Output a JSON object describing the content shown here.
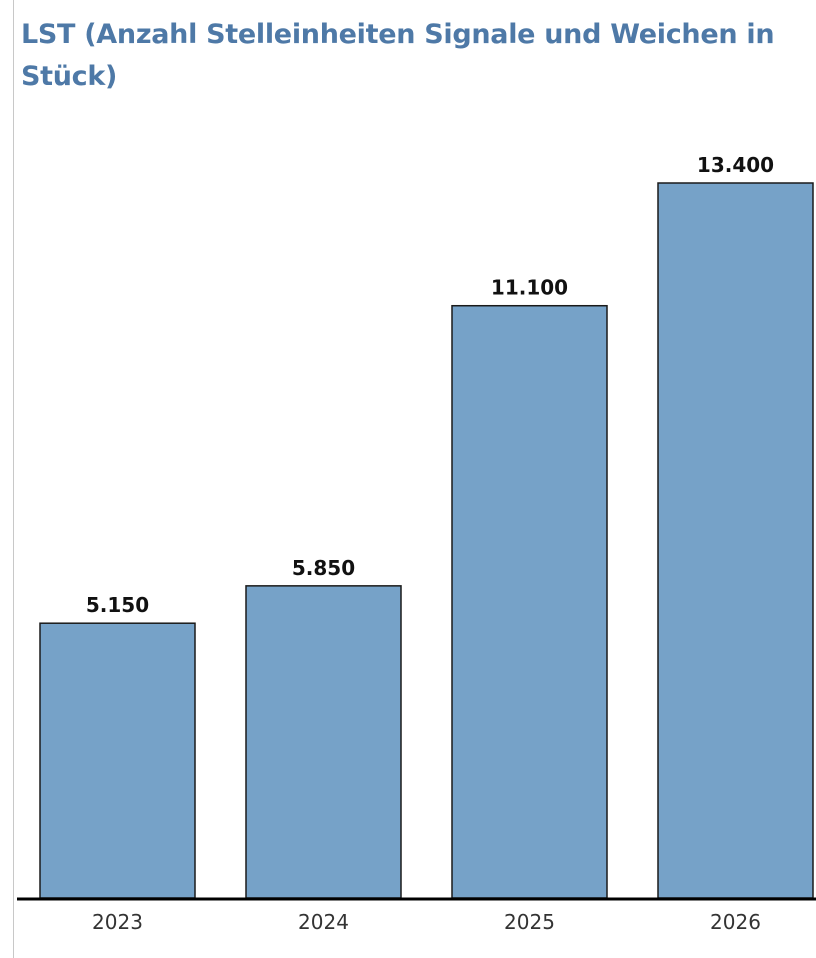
{
  "chart_data": {
    "type": "bar",
    "title": "LST (Anzahl Stelleinheiten Signale und Weichen in Stück)",
    "categories": [
      "2023",
      "2024",
      "2025",
      "2026"
    ],
    "values": [
      5150,
      5850,
      11100,
      13400
    ],
    "value_labels": [
      "5.150",
      "5.850",
      "11.100",
      "13.400"
    ],
    "xlabel": "",
    "ylabel": "",
    "ylim": [
      0,
      13400
    ],
    "grid": false,
    "legend": "none",
    "colors": {
      "bar": "#76a2c8",
      "title": "#4e79a7"
    }
  }
}
